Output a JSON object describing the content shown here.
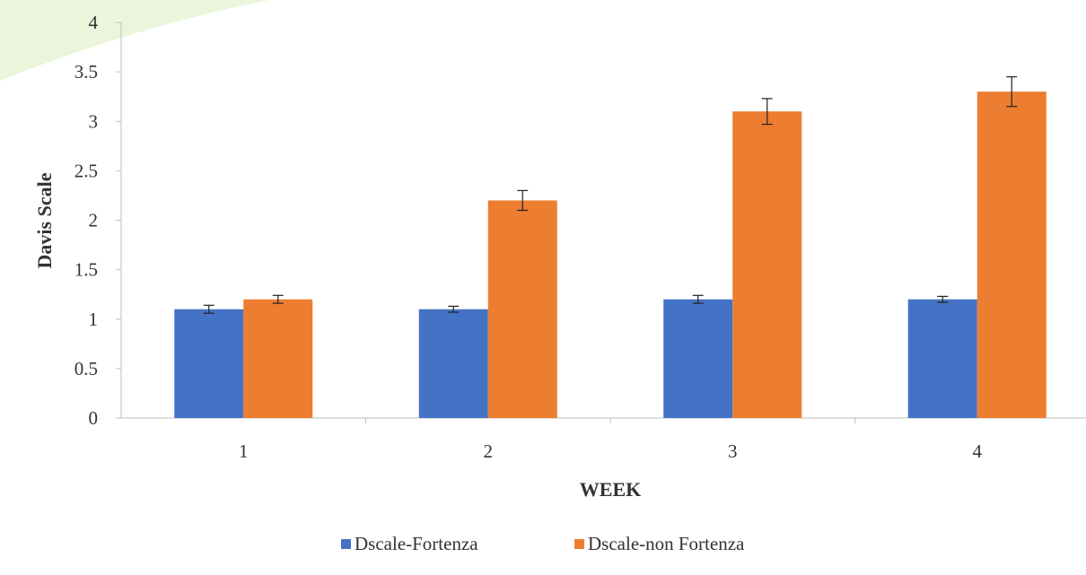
{
  "chart_data": {
    "type": "bar",
    "title": "",
    "xlabel": "WEEK",
    "ylabel": "Davis Scale",
    "categories": [
      "1",
      "2",
      "3",
      "4"
    ],
    "series": [
      {
        "name": "Dscale-Fortenza",
        "color": "#4472C4",
        "values": [
          1.1,
          1.1,
          1.2,
          1.2
        ],
        "errors": [
          0.04,
          0.03,
          0.04,
          0.03
        ]
      },
      {
        "name": "Dscale-non Fortenza",
        "color": "#ED7D31",
        "values": [
          1.2,
          2.2,
          3.1,
          3.3
        ],
        "errors": [
          0.04,
          0.1,
          0.13,
          0.15
        ]
      }
    ],
    "ylim": [
      0,
      4
    ],
    "yticks": [
      "0",
      "0.5",
      "1",
      "1.5",
      "2",
      "2.5",
      "3",
      "3.5",
      "4"
    ],
    "grid": false,
    "legend_position": "bottom"
  }
}
